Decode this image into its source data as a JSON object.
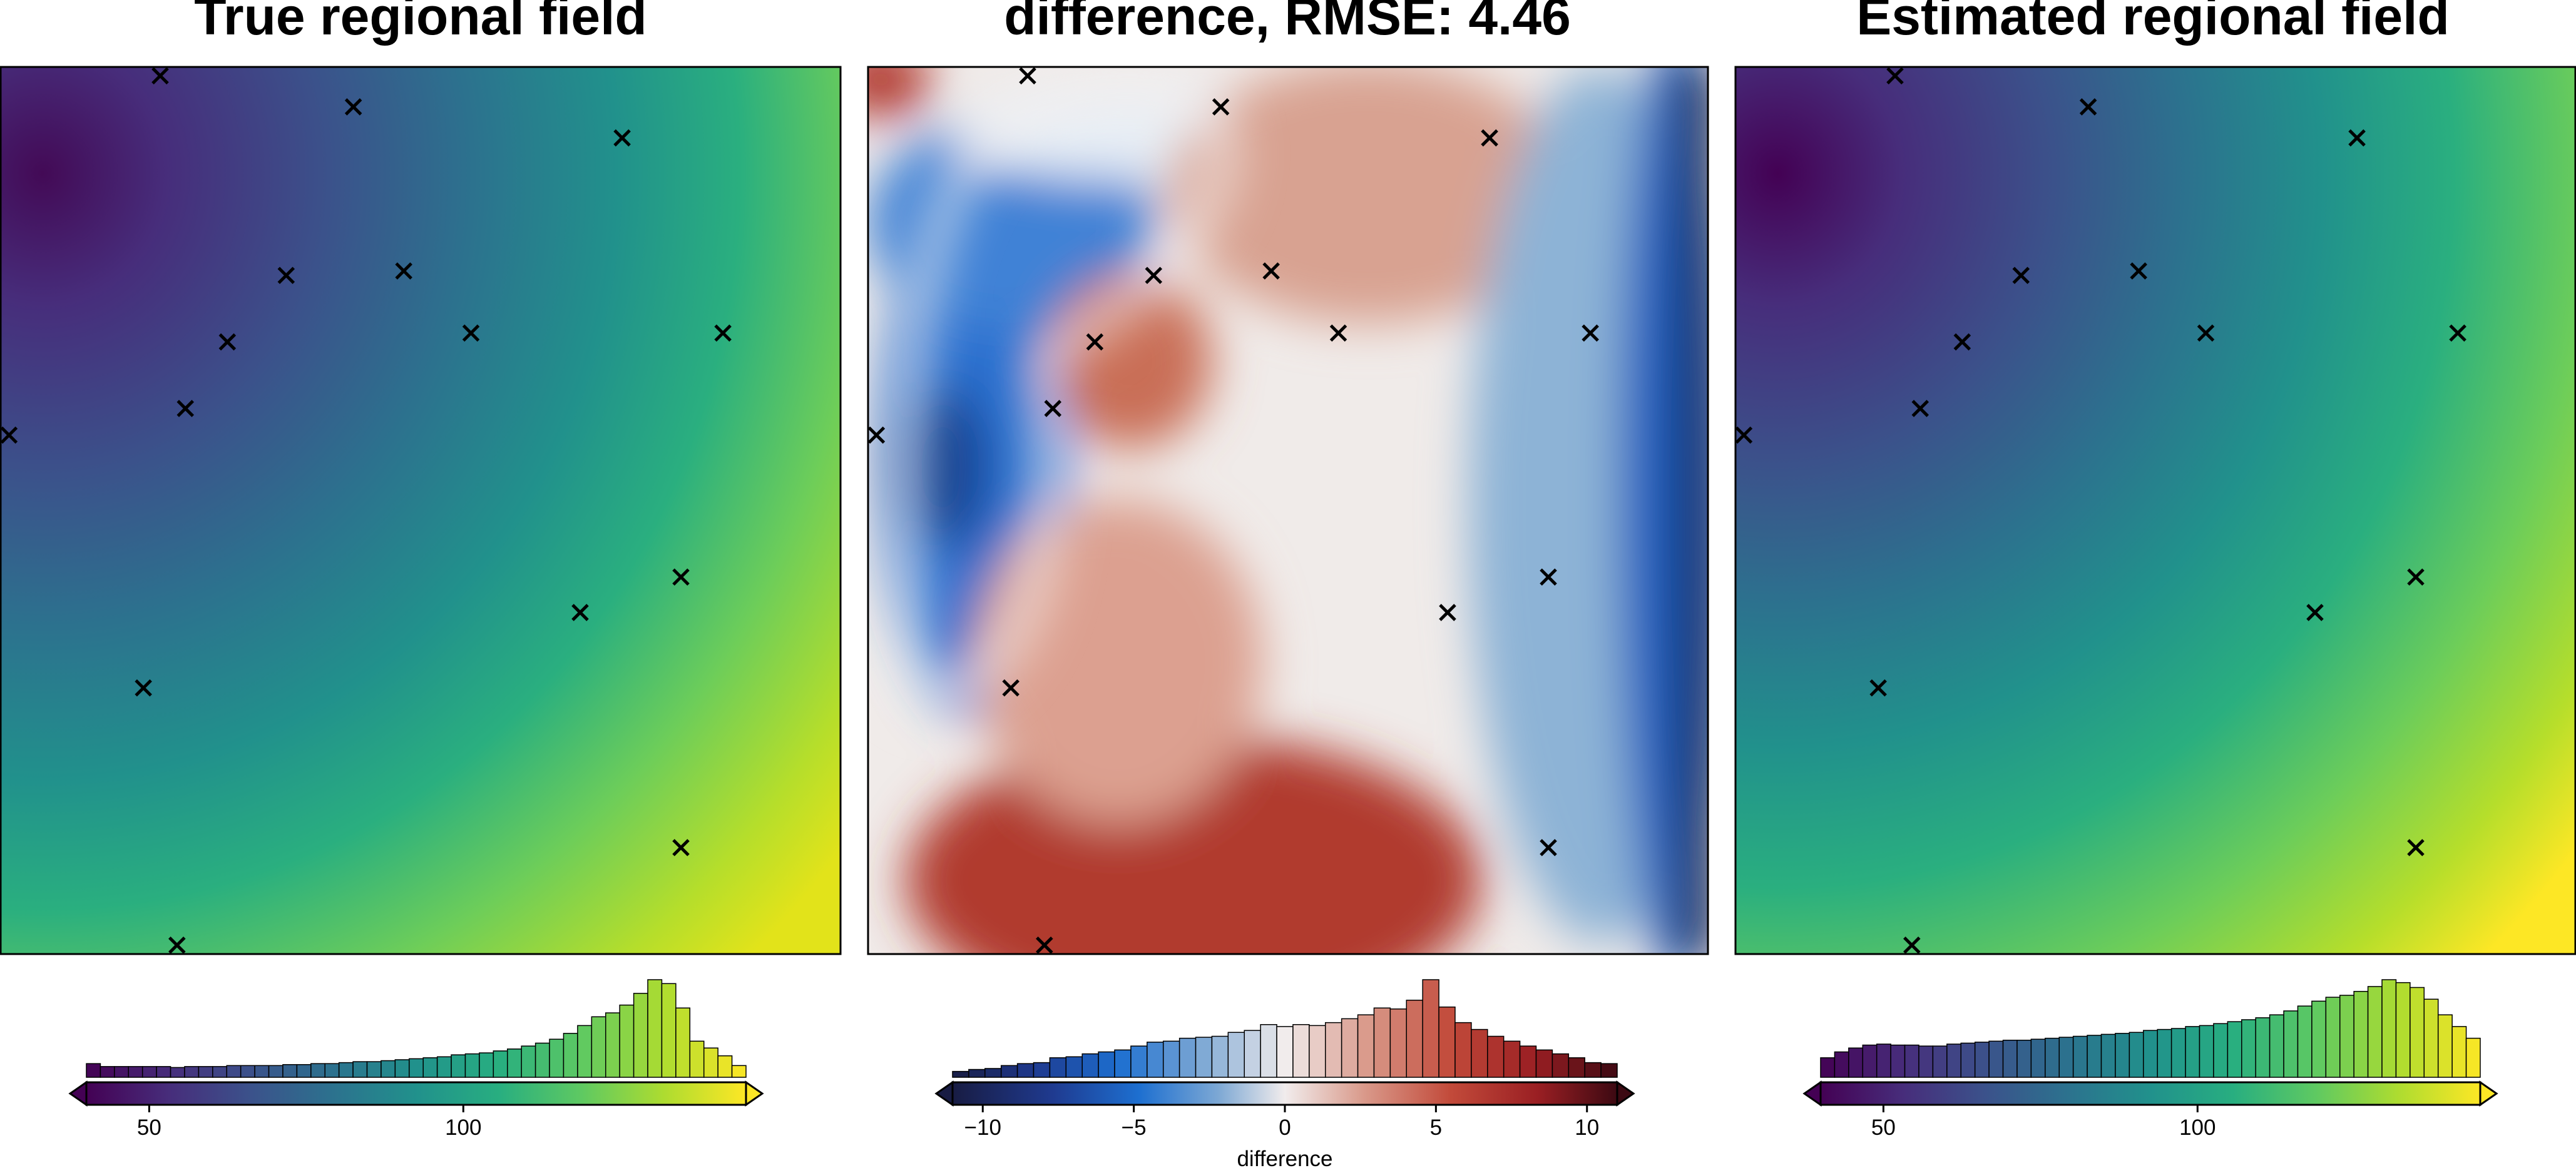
{
  "chart_data": [
    {
      "type": "heatmap",
      "title": "True regional field",
      "colormap": "viridis",
      "colorbar": {
        "range": [
          40,
          145
        ],
        "ticks": [
          50,
          100
        ],
        "extend": "both",
        "label": ""
      },
      "field": {
        "min_corner": "top-left",
        "max_corner": "bottom-right",
        "approx_range": [
          40,
          145
        ]
      },
      "histogram": [
        0.14,
        0.11,
        0.11,
        0.11,
        0.11,
        0.11,
        0.1,
        0.11,
        0.11,
        0.11,
        0.12,
        0.12,
        0.12,
        0.12,
        0.13,
        0.13,
        0.14,
        0.14,
        0.15,
        0.16,
        0.16,
        0.17,
        0.18,
        0.19,
        0.2,
        0.21,
        0.23,
        0.24,
        0.25,
        0.27,
        0.29,
        0.32,
        0.35,
        0.39,
        0.45,
        0.53,
        0.62,
        0.66,
        0.74,
        0.86,
        1.0,
        0.96,
        0.71,
        0.37,
        0.3,
        0.22,
        0.12
      ],
      "markers": {
        "symbol": "x",
        "points": [
          [
            0.19,
            0.01
          ],
          [
            0.42,
            0.045
          ],
          [
            0.74,
            0.08
          ],
          [
            0.34,
            0.235
          ],
          [
            0.48,
            0.23
          ],
          [
            0.56,
            0.3
          ],
          [
            0.86,
            0.3
          ],
          [
            0.27,
            0.31
          ],
          [
            0.22,
            0.385
          ],
          [
            0.01,
            0.415
          ],
          [
            0.81,
            0.575
          ],
          [
            0.69,
            0.615
          ],
          [
            0.17,
            0.7
          ],
          [
            0.81,
            0.88
          ],
          [
            0.21,
            0.99
          ]
        ]
      }
    },
    {
      "type": "heatmap",
      "title": "difference, RMSE: 4.46",
      "colormap": "balance",
      "colorbar": {
        "range": [
          -11,
          11
        ],
        "ticks": [
          -10,
          -5,
          0,
          5,
          10
        ],
        "extend": "both",
        "label": "difference"
      },
      "histogram": [
        0.06,
        0.08,
        0.09,
        0.12,
        0.14,
        0.15,
        0.2,
        0.21,
        0.24,
        0.26,
        0.28,
        0.32,
        0.36,
        0.37,
        0.4,
        0.41,
        0.42,
        0.46,
        0.48,
        0.54,
        0.52,
        0.54,
        0.53,
        0.56,
        0.6,
        0.64,
        0.71,
        0.7,
        0.79,
        1.0,
        0.72,
        0.56,
        0.49,
        0.42,
        0.37,
        0.32,
        0.28,
        0.24,
        0.2,
        0.15,
        0.14
      ],
      "markers": {
        "symbol": "x",
        "points": [
          [
            0.19,
            0.01
          ],
          [
            0.42,
            0.045
          ],
          [
            0.74,
            0.08
          ],
          [
            0.34,
            0.235
          ],
          [
            0.48,
            0.23
          ],
          [
            0.56,
            0.3
          ],
          [
            0.86,
            0.3
          ],
          [
            0.27,
            0.31
          ],
          [
            0.22,
            0.385
          ],
          [
            0.01,
            0.415
          ],
          [
            0.81,
            0.575
          ],
          [
            0.69,
            0.615
          ],
          [
            0.17,
            0.7
          ],
          [
            0.81,
            0.88
          ],
          [
            0.21,
            0.99
          ]
        ]
      }
    },
    {
      "type": "heatmap",
      "title": "Estimated regional field",
      "colormap": "viridis",
      "colorbar": {
        "range": [
          40,
          145
        ],
        "ticks": [
          50,
          100
        ],
        "extend": "both",
        "label": ""
      },
      "field": {
        "min_corner": "top-left",
        "max_corner": "bottom-right",
        "approx_range": [
          40,
          148
        ]
      },
      "histogram": [
        0.2,
        0.26,
        0.3,
        0.33,
        0.34,
        0.33,
        0.33,
        0.32,
        0.32,
        0.34,
        0.35,
        0.36,
        0.37,
        0.38,
        0.38,
        0.39,
        0.4,
        0.41,
        0.42,
        0.43,
        0.44,
        0.45,
        0.46,
        0.48,
        0.49,
        0.5,
        0.52,
        0.53,
        0.55,
        0.57,
        0.59,
        0.61,
        0.64,
        0.68,
        0.73,
        0.78,
        0.82,
        0.84,
        0.88,
        0.93,
        1.0,
        0.97,
        0.92,
        0.8,
        0.64,
        0.52,
        0.4
      ]
    }
  ]
}
